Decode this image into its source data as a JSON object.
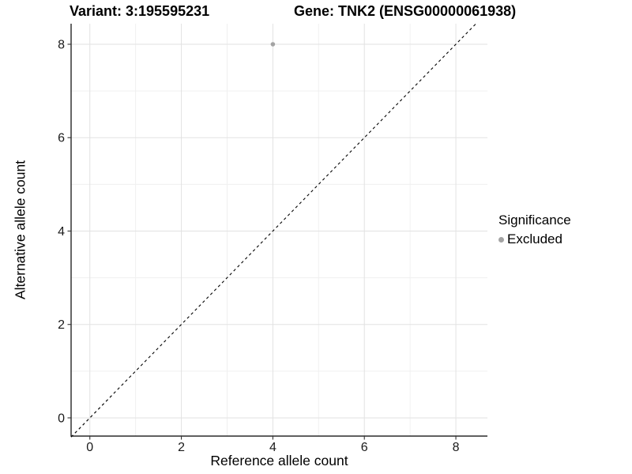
{
  "chart_data": {
    "type": "scatter",
    "title_left": "Variant: 3:195595231",
    "title_right": "Gene: TNK2 (ENSG00000061938)",
    "xlabel": "Reference allele count",
    "ylabel": "Alternative allele count",
    "xlim": [
      -0.41,
      8.69
    ],
    "ylim": [
      -0.39,
      8.44
    ],
    "x_major_ticks": [
      0,
      2,
      4,
      6,
      8
    ],
    "y_major_ticks": [
      0,
      2,
      4,
      6,
      8
    ],
    "x_minor_ticks": [
      1,
      3,
      5,
      7
    ],
    "y_minor_ticks": [
      1,
      3,
      5,
      7
    ],
    "grid": true,
    "identity_line": {
      "slope": 1,
      "intercept": 0,
      "style": "dashed",
      "color": "#000000"
    },
    "points": [
      {
        "x": 4,
        "y": 8,
        "significance": "Excluded"
      }
    ],
    "legend": {
      "title": "Significance",
      "position": "right",
      "items": [
        {
          "label": "Excluded",
          "color": "#a3a3a3"
        }
      ]
    },
    "colors": {
      "point": "#a3a3a3",
      "grid_major": "#e2e2e2",
      "grid_minor": "#f0f0f0",
      "axis_line": "#000000",
      "tick_mark": "#333333",
      "tick_label": "#1a1a1a"
    }
  }
}
